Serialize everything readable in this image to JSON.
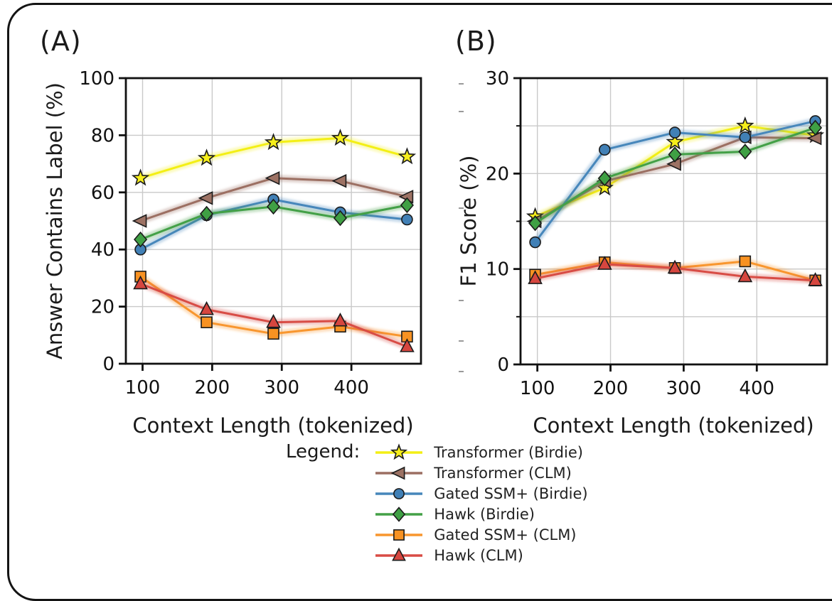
{
  "figure": {
    "frame": "rounded-black-border"
  },
  "legend": {
    "title": "Legend:",
    "items": [
      {
        "label": "Transformer (Birdie)",
        "marker": "star",
        "line_color": "#f3ef15",
        "fill_color": "#f7ef1a"
      },
      {
        "label": "Transformer (CLM)",
        "marker": "triangle-left",
        "line_color": "#9c6f62",
        "fill_color": "#9d7264"
      },
      {
        "label": "Gated SSM+ (Birdie)",
        "marker": "circle",
        "line_color": "#4787bb",
        "fill_color": "#4180b6"
      },
      {
        "label": "Hawk (Birdie)",
        "marker": "diamond",
        "line_color": "#43a047",
        "fill_color": "#3fa044"
      },
      {
        "label": "Gated SSM+ (CLM)",
        "marker": "square",
        "line_color": "#f8962e",
        "fill_color": "#f89222"
      },
      {
        "label": "Hawk (CLM)",
        "marker": "triangle-up",
        "line_color": "#d84c45",
        "fill_color": "#d6463f"
      }
    ]
  },
  "chart_data": [
    {
      "id": "A",
      "type": "line",
      "title": "(A)",
      "xlabel": "Context Length (tokenized)",
      "ylabel": "Answer Contains Label (%)",
      "x": [
        97,
        192,
        288,
        384,
        480
      ],
      "xlim": [
        76,
        500
      ],
      "ylim": [
        0,
        100
      ],
      "xticks": [
        100,
        200,
        300,
        400
      ],
      "yticks": [
        0,
        20,
        40,
        60,
        80,
        100
      ],
      "yticks_minor": [],
      "grid_x": [
        100,
        200,
        300,
        400
      ],
      "grid_y": [
        20,
        40,
        60,
        80
      ],
      "legend_position": "below-figure",
      "series": [
        {
          "name": "Transformer (Birdie)",
          "values": [
            65,
            72,
            77.5,
            79,
            72.5
          ]
        },
        {
          "name": "Transformer (CLM)",
          "values": [
            50,
            58,
            65,
            64,
            58.5
          ]
        },
        {
          "name": "Gated SSM+ (Birdie)",
          "values": [
            40,
            52,
            57.5,
            53,
            50.5
          ]
        },
        {
          "name": "Hawk (Birdie)",
          "values": [
            43.5,
            52.5,
            55,
            51,
            55.5
          ]
        },
        {
          "name": "Gated SSM+ (CLM)",
          "values": [
            30.5,
            14.5,
            10.5,
            13,
            9.5
          ]
        },
        {
          "name": "Hawk (CLM)",
          "values": [
            28,
            19,
            14.5,
            15,
            6
          ]
        }
      ]
    },
    {
      "id": "B",
      "type": "line",
      "title": "(B)",
      "xlabel": "Context Length (tokenized)",
      "ylabel": "F1 Score (%)",
      "x": [
        97,
        192,
        288,
        384,
        480
      ],
      "xlim": [
        77,
        496
      ],
      "ylim": [
        0,
        30
      ],
      "xticks": [
        100,
        200,
        300,
        400
      ],
      "yticks": [
        0,
        10,
        20,
        30
      ],
      "yticks_minor": [
        5,
        15,
        25
      ],
      "grid_x": [
        100,
        200,
        300,
        400
      ],
      "grid_y": [
        5,
        10,
        15,
        20,
        25
      ],
      "legend_position": "below-figure",
      "series": [
        {
          "name": "Transformer (Birdie)",
          "values": [
            15.5,
            18.5,
            23.3,
            25,
            24
          ]
        },
        {
          "name": "Transformer (CLM)",
          "values": [
            15,
            19.2,
            21,
            23.8,
            23.7
          ]
        },
        {
          "name": "Gated SSM+ (Birdie)",
          "values": [
            12.8,
            22.5,
            24.3,
            23.8,
            25.5
          ]
        },
        {
          "name": "Hawk (Birdie)",
          "values": [
            14.8,
            19.5,
            22,
            22.3,
            24.8
          ]
        },
        {
          "name": "Gated SSM+ (CLM)",
          "values": [
            9.4,
            10.7,
            10.1,
            10.8,
            8.8
          ]
        },
        {
          "name": "Hawk (CLM)",
          "values": [
            9,
            10.5,
            10.1,
            9.2,
            8.8
          ]
        }
      ]
    }
  ],
  "style": {
    "spine_color": "#111111",
    "grid_color": "#c9c9c9",
    "marker_edge_color": "#1b1b1b",
    "tick_label_color": "#111111"
  }
}
